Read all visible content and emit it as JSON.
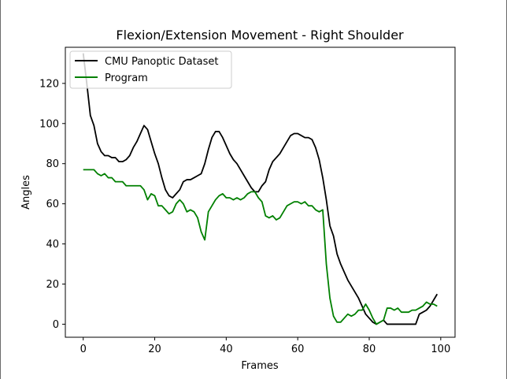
{
  "chart_data": {
    "type": "line",
    "title": "Flexion/Extension Movement - Right Shoulder",
    "xlabel": "Frames",
    "ylabel": "Angles",
    "xlim": [
      -5,
      104
    ],
    "ylim": [
      -6.5,
      138
    ],
    "xticks": [
      0,
      20,
      40,
      60,
      80,
      100
    ],
    "yticks": [
      0,
      20,
      40,
      60,
      80,
      100,
      120
    ],
    "grid": false,
    "legend_position": "top-left",
    "series": [
      {
        "name": "CMU Panoptic Dataset",
        "color": "#000000",
        "x": [
          0,
          1,
          2,
          3,
          4,
          5,
          6,
          7,
          8,
          9,
          10,
          11,
          12,
          13,
          14,
          15,
          16,
          17,
          18,
          19,
          20,
          21,
          22,
          23,
          24,
          25,
          26,
          27,
          28,
          29,
          30,
          31,
          32,
          33,
          34,
          35,
          36,
          37,
          38,
          39,
          40,
          41,
          42,
          43,
          44,
          45,
          46,
          47,
          48,
          49,
          50,
          51,
          52,
          53,
          54,
          55,
          56,
          57,
          58,
          59,
          60,
          61,
          62,
          63,
          64,
          65,
          66,
          67,
          68,
          69,
          70,
          71,
          72,
          73,
          74,
          75,
          76,
          77,
          78,
          79,
          80,
          81,
          82,
          83,
          84,
          85,
          86,
          87,
          88,
          89,
          90,
          91,
          92,
          93,
          94,
          95,
          96,
          97,
          98,
          99
        ],
        "y": [
          135,
          120,
          104,
          99,
          90,
          86,
          84,
          84,
          83,
          83,
          81,
          81,
          82,
          84,
          88,
          91,
          95,
          99,
          97,
          91,
          85,
          80,
          73,
          67,
          64,
          63,
          65,
          67,
          71,
          72,
          72,
          73,
          74,
          75,
          80,
          87,
          93,
          96,
          96,
          93,
          89,
          85,
          82,
          80,
          77,
          74,
          71,
          68,
          66,
          66,
          69,
          71,
          77,
          81,
          83,
          85,
          88,
          91,
          94,
          95,
          95,
          94,
          93,
          93,
          92,
          88,
          82,
          73,
          62,
          49,
          44,
          35,
          30,
          26,
          22,
          19,
          16,
          13,
          9,
          5,
          3,
          1,
          0,
          1,
          2,
          0,
          0,
          0,
          0,
          0,
          0,
          0,
          0,
          0,
          5,
          6,
          7,
          9,
          12,
          15
        ]
      },
      {
        "name": "Program",
        "color": "#008000",
        "x": [
          0,
          1,
          2,
          3,
          4,
          5,
          6,
          7,
          8,
          9,
          10,
          11,
          12,
          13,
          14,
          15,
          16,
          17,
          18,
          19,
          20,
          21,
          22,
          23,
          24,
          25,
          26,
          27,
          28,
          29,
          30,
          31,
          32,
          33,
          34,
          35,
          36,
          37,
          38,
          39,
          40,
          41,
          42,
          43,
          44,
          45,
          46,
          47,
          48,
          49,
          50,
          51,
          52,
          53,
          54,
          55,
          56,
          57,
          58,
          59,
          60,
          61,
          62,
          63,
          64,
          65,
          66,
          67,
          68,
          69,
          70,
          71,
          72,
          73,
          74,
          75,
          76,
          77,
          78,
          79,
          80,
          81,
          82,
          83,
          84,
          85,
          86,
          87,
          88,
          89,
          90,
          91,
          92,
          93,
          94,
          95,
          96,
          97,
          98,
          99
        ],
        "y": [
          77,
          77,
          77,
          77,
          75,
          74,
          75,
          73,
          73,
          71,
          71,
          71,
          69,
          69,
          69,
          69,
          69,
          67,
          62,
          65,
          64,
          59,
          59,
          57,
          55,
          56,
          60,
          62,
          60,
          56,
          57,
          56,
          53,
          46,
          42,
          56,
          59,
          62,
          64,
          65,
          63,
          63,
          62,
          63,
          62,
          63,
          65,
          66,
          66,
          63,
          61,
          54,
          53,
          54,
          52,
          53,
          56,
          59,
          60,
          61,
          61,
          60,
          61,
          59,
          59,
          57,
          56,
          57,
          30,
          13,
          4,
          1,
          1,
          3,
          5,
          4,
          5,
          7,
          7,
          10,
          7,
          3,
          0,
          1,
          2,
          8,
          8,
          7,
          8,
          6,
          6,
          6,
          7,
          7,
          8,
          9,
          11,
          10,
          10,
          9
        ]
      }
    ]
  }
}
